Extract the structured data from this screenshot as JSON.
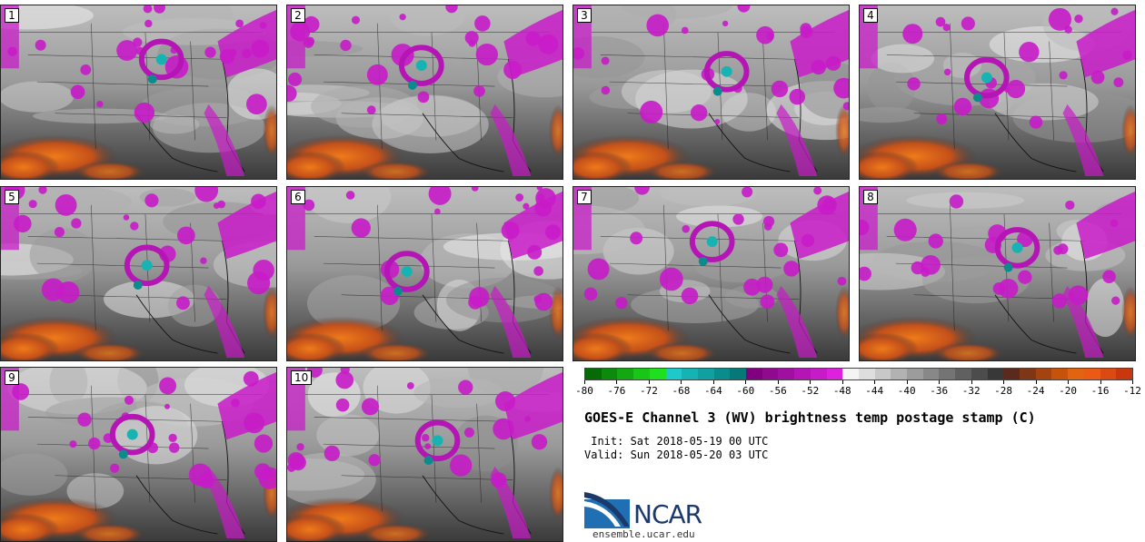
{
  "panels": [
    {
      "label": "1"
    },
    {
      "label": "2"
    },
    {
      "label": "3"
    },
    {
      "label": "4"
    },
    {
      "label": "5"
    },
    {
      "label": "6"
    },
    {
      "label": "7"
    },
    {
      "label": "8"
    },
    {
      "label": "9"
    },
    {
      "label": "10"
    }
  ],
  "colorbar": {
    "colors": [
      "#066b06",
      "#0b8a0b",
      "#11a811",
      "#17c617",
      "#1ee01e",
      "#1ec9c9",
      "#17b3b3",
      "#10a0a0",
      "#0a8c8c",
      "#077878",
      "#800080",
      "#8f0a8f",
      "#a010a0",
      "#b515b5",
      "#c81bc8",
      "#dc22dc",
      "#f4f4f4",
      "#dedede",
      "#c8c8c8",
      "#b2b2b2",
      "#9c9c9c",
      "#888888",
      "#747474",
      "#606060",
      "#4c4c4c",
      "#383838",
      "#5a2a1c",
      "#7e3615",
      "#a3430f",
      "#c75209",
      "#e36410",
      "#ea5a14",
      "#dc4a14",
      "#c8380c"
    ],
    "tick_labels": [
      "-80",
      "-76",
      "-72",
      "-68",
      "-64",
      "-60",
      "-56",
      "-52",
      "-48",
      "-44",
      "-40",
      "-36",
      "-32",
      "-28",
      "-24",
      "-20",
      "-16",
      "-12"
    ]
  },
  "title": "GOES-E Channel 3 (WV) brightness temp postage stamp (C)",
  "init": " Init: Sat 2018-05-19 00 UTC",
  "valid": "Valid: Sun 2018-05-20 03 UTC",
  "logo": {
    "text": "NCAR",
    "colors": {
      "blue": "#1f6fb2",
      "navy": "#1b3a6b"
    }
  },
  "url": "ensemble.ucar.edu"
}
